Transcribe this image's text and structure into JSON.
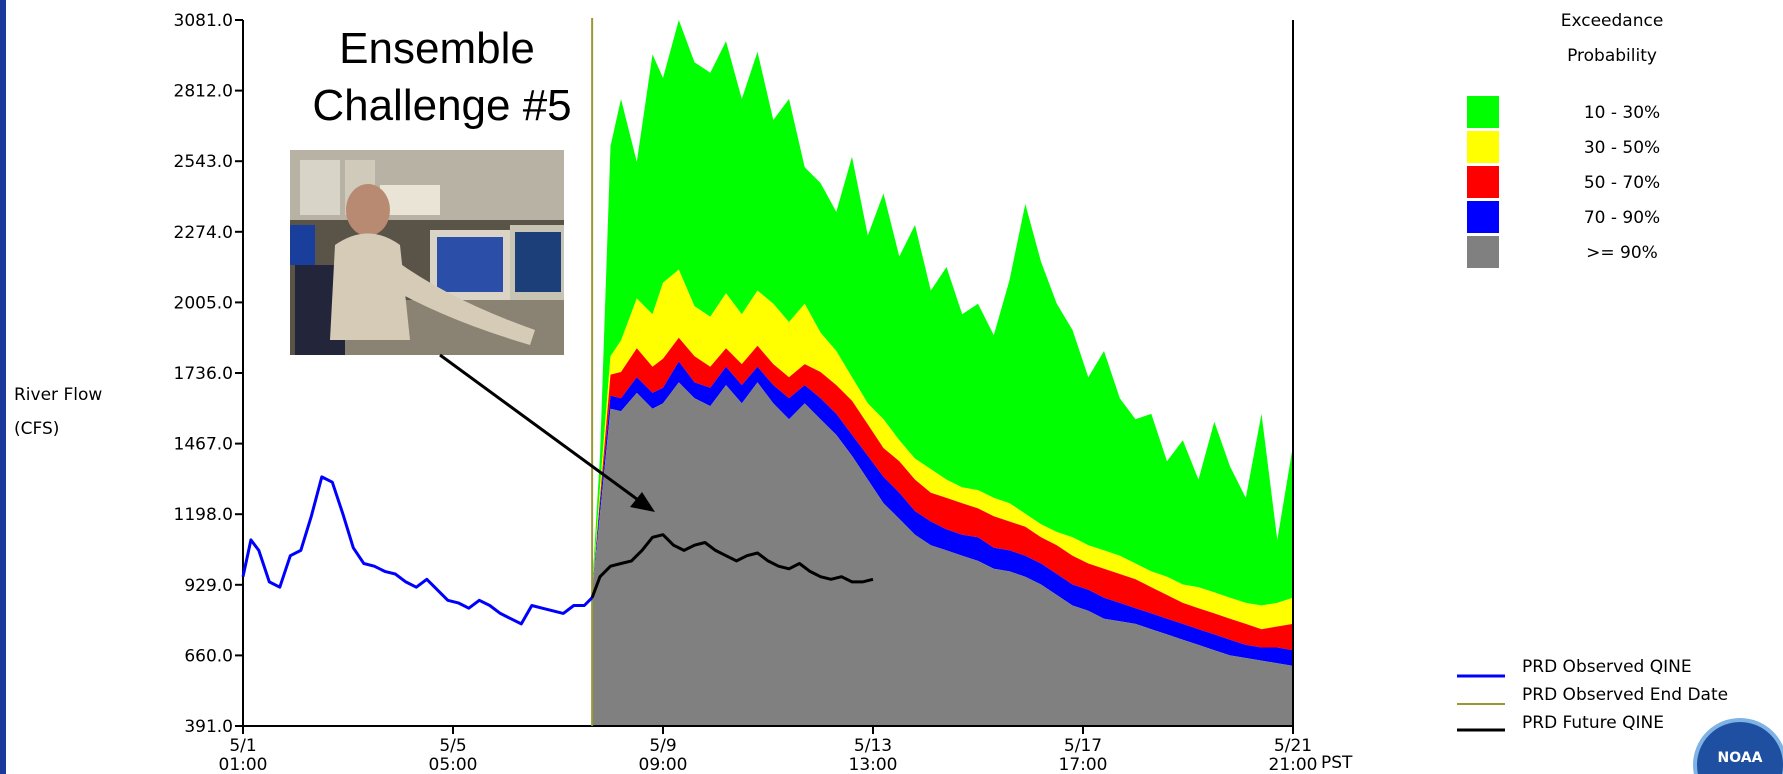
{
  "chart_data": {
    "type": "area",
    "title_lines": [
      "Ensemble",
      "Challenge #5"
    ],
    "ylabel_lines": [
      "River Flow",
      "(CFS)"
    ],
    "y_ticks": [
      "3081.0",
      "2812.0",
      "2543.0",
      "2274.0",
      "2005.0",
      "1736.0",
      "1467.0",
      "1198.0",
      "929.0",
      "660.0",
      "391.0"
    ],
    "ylim": [
      391,
      3081
    ],
    "x_ticks": [
      {
        "day": 1,
        "top": "5/1",
        "bottom": "01:00"
      },
      {
        "day": 5,
        "top": "5/5",
        "bottom": "05:00"
      },
      {
        "day": 9,
        "top": "5/9",
        "bottom": "09:00"
      },
      {
        "day": 13,
        "top": "5/13",
        "bottom": "13:00"
      },
      {
        "day": 17,
        "top": "5/17",
        "bottom": "17:00"
      },
      {
        "day": 21,
        "top": "5/21",
        "bottom": "21:00"
      }
    ],
    "x_unit": "PST",
    "xlim": [
      1,
      21
    ],
    "observed_end_day": 7.65,
    "exceedance_title_lines": [
      "Exceedance",
      "Probability"
    ],
    "bands": [
      {
        "label": "10 - 30%",
        "color": "#00ff00"
      },
      {
        "label": "30 - 50%",
        "color": "#ffff00"
      },
      {
        "label": "50 - 70%",
        "color": "#ff0000"
      },
      {
        "label": "70 - 90%",
        "color": "#0000ff"
      },
      {
        "label": ">= 90%",
        "color": "#808080"
      }
    ],
    "band_x": [
      7.65,
      7.8,
      8.0,
      8.2,
      8.5,
      8.8,
      9.0,
      9.3,
      9.6,
      9.9,
      10.2,
      10.5,
      10.8,
      11.1,
      11.4,
      11.7,
      12.0,
      12.3,
      12.6,
      12.9,
      13.2,
      13.5,
      13.8,
      14.1,
      14.4,
      14.7,
      15.0,
      15.3,
      15.6,
      15.9,
      16.2,
      16.5,
      16.8,
      17.1,
      17.4,
      17.7,
      18.0,
      18.3,
      18.6,
      18.9,
      19.2,
      19.5,
      19.8,
      20.1,
      20.4,
      20.7,
      21.0
    ],
    "band_boundaries": {
      "g90": [
        900,
        1200,
        1600,
        1590,
        1660,
        1600,
        1620,
        1700,
        1640,
        1610,
        1690,
        1620,
        1700,
        1620,
        1560,
        1620,
        1560,
        1500,
        1420,
        1330,
        1240,
        1180,
        1120,
        1080,
        1060,
        1040,
        1020,
        990,
        980,
        960,
        930,
        890,
        850,
        830,
        800,
        790,
        780,
        760,
        740,
        720,
        700,
        680,
        660,
        650,
        640,
        630,
        620
      ],
      "p70": [
        900,
        1240,
        1650,
        1640,
        1720,
        1660,
        1680,
        1780,
        1700,
        1680,
        1760,
        1690,
        1760,
        1690,
        1640,
        1690,
        1640,
        1580,
        1500,
        1420,
        1340,
        1280,
        1210,
        1170,
        1140,
        1120,
        1110,
        1070,
        1060,
        1040,
        1010,
        970,
        930,
        910,
        880,
        860,
        840,
        820,
        800,
        780,
        760,
        740,
        720,
        700,
        690,
        690,
        680
      ],
      "p50": [
        900,
        1260,
        1730,
        1740,
        1830,
        1760,
        1790,
        1870,
        1800,
        1760,
        1830,
        1770,
        1840,
        1770,
        1720,
        1770,
        1740,
        1690,
        1630,
        1540,
        1450,
        1400,
        1330,
        1280,
        1260,
        1240,
        1220,
        1190,
        1170,
        1150,
        1110,
        1080,
        1040,
        1010,
        990,
        970,
        950,
        920,
        890,
        860,
        840,
        820,
        800,
        780,
        760,
        770,
        780
      ],
      "p30": [
        900,
        1300,
        1800,
        1860,
        2020,
        1960,
        2080,
        2130,
        1990,
        1950,
        2040,
        1960,
        2050,
        2000,
        1930,
        2000,
        1890,
        1820,
        1720,
        1620,
        1560,
        1480,
        1410,
        1370,
        1330,
        1300,
        1290,
        1260,
        1240,
        1200,
        1160,
        1130,
        1110,
        1080,
        1060,
        1040,
        1010,
        980,
        960,
        930,
        920,
        900,
        880,
        860,
        850,
        860,
        880
      ],
      "p10": [
        920,
        1420,
        2600,
        2780,
        2540,
        2950,
        2860,
        3081,
        2920,
        2880,
        3000,
        2780,
        2960,
        2700,
        2780,
        2520,
        2460,
        2350,
        2560,
        2260,
        2420,
        2180,
        2300,
        2050,
        2140,
        1960,
        2000,
        1880,
        2090,
        2380,
        2160,
        2000,
        1900,
        1720,
        1820,
        1640,
        1560,
        1580,
        1400,
        1480,
        1330,
        1550,
        1380,
        1260,
        1580,
        1100,
        1460
      ]
    },
    "series": [
      {
        "name": "PRD Observed QINE",
        "color": "#0000ff",
        "x": [
          1.0,
          1.15,
          1.3,
          1.5,
          1.7,
          1.9,
          2.1,
          2.3,
          2.5,
          2.7,
          2.9,
          3.1,
          3.3,
          3.5,
          3.7,
          3.9,
          4.1,
          4.3,
          4.5,
          4.7,
          4.9,
          5.1,
          5.3,
          5.5,
          5.7,
          5.9,
          6.1,
          6.3,
          6.5,
          6.7,
          6.9,
          7.1,
          7.3,
          7.5,
          7.65
        ],
        "y": [
          960,
          1100,
          1060,
          940,
          920,
          1040,
          1060,
          1190,
          1340,
          1320,
          1200,
          1070,
          1010,
          1000,
          980,
          970,
          940,
          920,
          950,
          910,
          870,
          860,
          840,
          870,
          850,
          820,
          800,
          780,
          850,
          840,
          830,
          820,
          850,
          850,
          880
        ]
      },
      {
        "name": "PRD Observed End Date",
        "color": "#999933"
      },
      {
        "name": "PRD Future QINE",
        "color": "#000000",
        "x": [
          7.65,
          7.8,
          8.0,
          8.2,
          8.4,
          8.6,
          8.8,
          9.0,
          9.2,
          9.4,
          9.6,
          9.8,
          10.0,
          10.2,
          10.4,
          10.6,
          10.8,
          11.0,
          11.2,
          11.4,
          11.6,
          11.8,
          12.0,
          12.2,
          12.4,
          12.6,
          12.8,
          13.0
        ],
        "y": [
          880,
          960,
          1000,
          1010,
          1020,
          1060,
          1110,
          1120,
          1080,
          1060,
          1080,
          1090,
          1060,
          1040,
          1020,
          1040,
          1050,
          1020,
          1000,
          990,
          1010,
          980,
          960,
          950,
          960,
          940,
          940,
          950
        ]
      }
    ],
    "grid": false,
    "legend_position": "right"
  }
}
